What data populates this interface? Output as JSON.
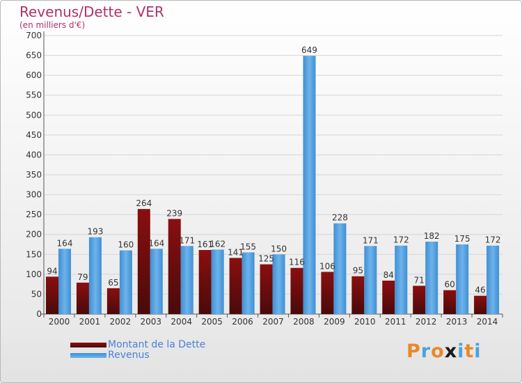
{
  "chart_data": {
    "type": "bar",
    "title": "Revenus/Dette - VER",
    "subtitle": "(en milliers d'€)",
    "categories": [
      "2000",
      "2001",
      "2002",
      "2003",
      "2004",
      "2005",
      "2006",
      "2007",
      "2008",
      "2009",
      "2010",
      "2011",
      "2012",
      "2013",
      "2014"
    ],
    "series": [
      {
        "name": "Montant de la Dette",
        "color": "#7a0e0f",
        "values": [
          94,
          79,
          65,
          264,
          239,
          161,
          141,
          125,
          116,
          106,
          95,
          84,
          71,
          60,
          46
        ]
      },
      {
        "name": "Revenus",
        "color": "#4a9be0",
        "values": [
          164,
          193,
          160,
          164,
          171,
          162,
          155,
          150,
          649,
          228,
          171,
          172,
          182,
          175,
          172
        ]
      }
    ],
    "ylim": [
      0,
      700
    ],
    "ytick_step": 50,
    "grid": true,
    "legend_position": "bottom-left"
  },
  "logo": {
    "text": "Proxiti",
    "letter_colors": [
      "#e8892b",
      "#4aa3df",
      "#e8892b",
      "#1a1a1a",
      "#4aa3df",
      "#e8892b",
      "#4aa3df"
    ]
  }
}
